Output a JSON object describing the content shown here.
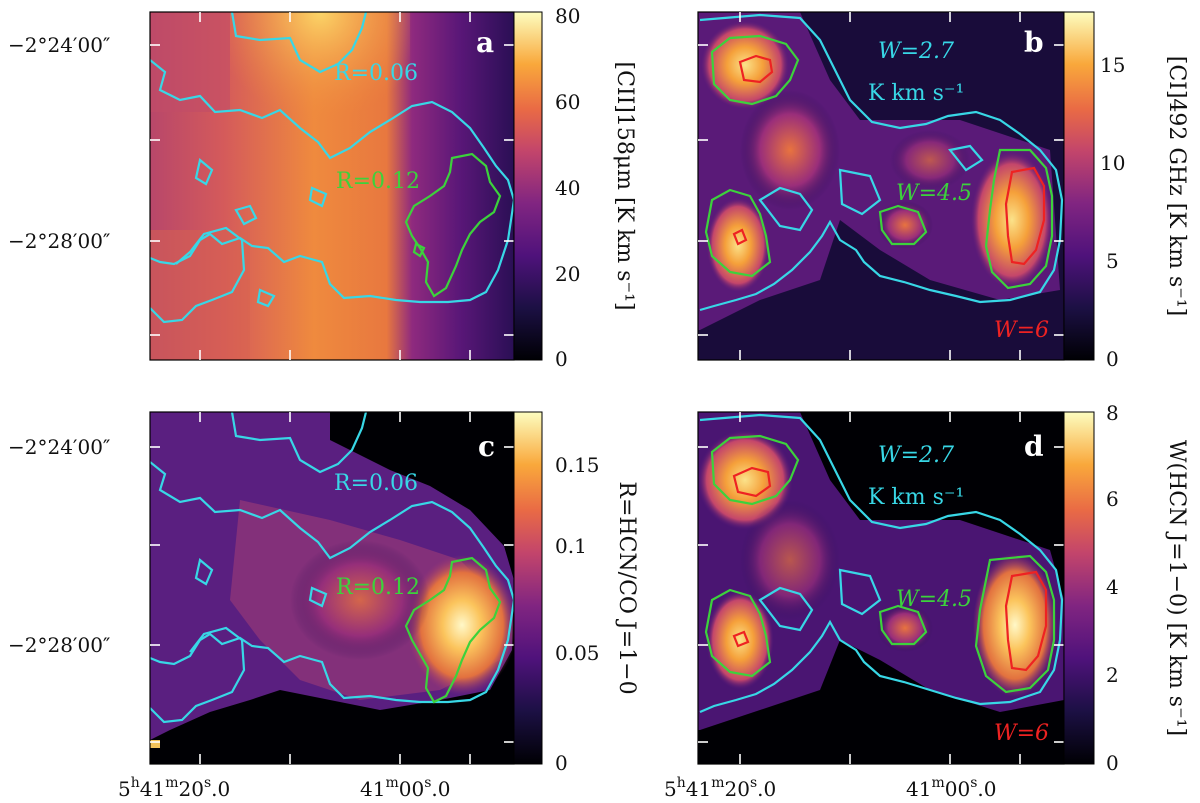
{
  "figure": {
    "dec_ticks": [
      "−2°24′00″",
      "−2°28′00″"
    ],
    "ra_ticks": [
      "5h41m20.s0",
      "41m00.s0"
    ],
    "ra_ticks_display": [
      {
        "main": "5",
        "h": "h",
        "mid": "41",
        "m": "m",
        "sec": "20",
        "s": "s",
        "frac": ".0"
      },
      {
        "main": "",
        "h": "",
        "mid": "41",
        "m": "m",
        "sec": "00",
        "s": "s",
        "frac": ".0"
      }
    ]
  },
  "panels": [
    {
      "id": "a",
      "letter": "a",
      "colorbar_label": "[CII]158μm [K km s⁻¹]",
      "colorbar_ticks": [
        "0",
        "20",
        "40",
        "60",
        "80"
      ],
      "annotations": [
        {
          "text": "R=0.06",
          "color": "#38d7e6"
        },
        {
          "text": "R=0.12",
          "color": "#3cd23c"
        }
      ]
    },
    {
      "id": "b",
      "letter": "b",
      "colorbar_label": "[CI]492 GHz [K km s⁻¹]",
      "colorbar_ticks": [
        "0",
        "5",
        "10",
        "15"
      ],
      "annotations": [
        {
          "text": "W=2.7",
          "color": "#38d7e6"
        },
        {
          "text": "K km s⁻¹",
          "color": "#38d7e6"
        },
        {
          "text": "W=4.5",
          "color": "#3cd23c"
        },
        {
          "text": "W=6",
          "color": "#ee2222"
        }
      ]
    },
    {
      "id": "c",
      "letter": "c",
      "colorbar_label": "R=HCN/CO J=1−0",
      "colorbar_ticks": [
        "0",
        "0.05",
        "0.1",
        "0.15"
      ],
      "annotations": [
        {
          "text": "R=0.06",
          "color": "#38d7e6"
        },
        {
          "text": "R=0.12",
          "color": "#3cd23c"
        }
      ]
    },
    {
      "id": "d",
      "letter": "d",
      "colorbar_label": "W(HCN J=1−0) [K km s⁻¹]",
      "colorbar_ticks": [
        "0",
        "2",
        "4",
        "6",
        "8"
      ],
      "annotations": [
        {
          "text": "W=2.7",
          "color": "#38d7e6"
        },
        {
          "text": "K km s⁻¹",
          "color": "#38d7e6"
        },
        {
          "text": "W=4.5",
          "color": "#3cd23c"
        },
        {
          "text": "W=6",
          "color": "#ee2222"
        }
      ]
    }
  ],
  "colors": {
    "cyan_contour": "#38d7e6",
    "green_contour": "#3cd23c",
    "red_contour": "#ee2222"
  }
}
